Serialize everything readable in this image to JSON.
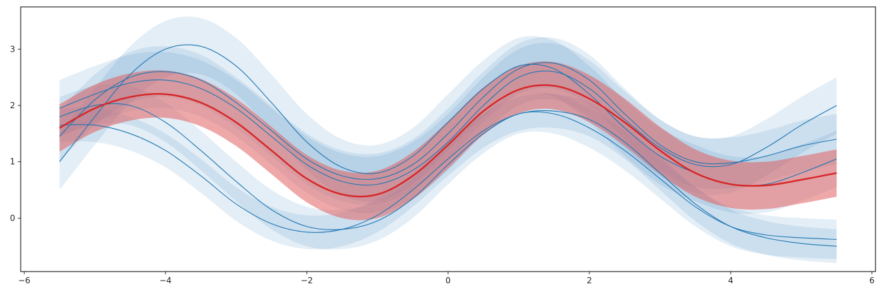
{
  "chart_data": {
    "type": "line",
    "title": "",
    "xlabel": "",
    "ylabel": "",
    "xlim": [
      -6.05,
      6.05
    ],
    "ylim": [
      -0.95,
      3.75
    ],
    "grid": false,
    "legend": "none",
    "xticks": [
      {
        "value": -6,
        "label": "−6"
      },
      {
        "value": -4,
        "label": "−4"
      },
      {
        "value": -2,
        "label": "−2"
      },
      {
        "value": 0,
        "label": "0"
      },
      {
        "value": 2,
        "label": "2"
      },
      {
        "value": 4,
        "label": "4"
      },
      {
        "value": 6,
        "label": "6"
      }
    ],
    "yticks": [
      {
        "value": 0,
        "label": "0"
      },
      {
        "value": 1,
        "label": "1"
      },
      {
        "value": 2,
        "label": "2"
      },
      {
        "value": 3,
        "label": "3"
      }
    ],
    "colors": {
      "sample": "#1f77b4",
      "sample_band": "#1f77b4",
      "mean": "#d62728",
      "mean_band": "#e06060"
    },
    "x": [
      -5.5,
      -5.0,
      -4.5,
      -4.0,
      -3.5,
      -3.0,
      -2.5,
      -2.0,
      -1.5,
      -1.0,
      -0.5,
      0.0,
      0.5,
      1.0,
      1.5,
      2.0,
      2.5,
      3.0,
      3.5,
      4.0,
      4.5,
      5.0,
      5.5
    ],
    "series": [
      {
        "role": "sample",
        "values": [
          1.0,
          1.8,
          2.55,
          3.0,
          3.05,
          2.7,
          2.05,
          1.35,
          0.9,
          0.8,
          1.1,
          1.7,
          2.3,
          2.7,
          2.65,
          2.2,
          1.6,
          1.1,
          0.8,
          0.6,
          0.6,
          0.8,
          1.05
        ],
        "band": 0.5
      },
      {
        "role": "sample",
        "values": [
          1.45,
          2.1,
          2.5,
          2.6,
          2.45,
          2.05,
          1.55,
          1.05,
          0.75,
          0.7,
          0.95,
          1.5,
          2.15,
          2.65,
          2.75,
          2.45,
          1.85,
          1.3,
          1.0,
          0.98,
          1.1,
          1.28,
          1.4
        ],
        "band": 0.45
      },
      {
        "role": "sample",
        "values": [
          1.95,
          2.2,
          2.4,
          2.45,
          2.3,
          1.95,
          1.45,
          0.95,
          0.65,
          0.6,
          0.85,
          1.35,
          2.0,
          2.5,
          2.6,
          2.3,
          1.75,
          1.25,
          0.95,
          0.95,
          1.25,
          1.65,
          2.0
        ],
        "band": 0.5
      },
      {
        "role": "sample",
        "values": [
          1.8,
          2.0,
          2.0,
          1.7,
          1.2,
          0.65,
          0.15,
          -0.15,
          -0.2,
          -0.05,
          0.35,
          0.95,
          1.5,
          1.85,
          1.85,
          1.6,
          1.2,
          0.7,
          0.2,
          -0.15,
          -0.3,
          -0.35,
          -0.38
        ],
        "band": 0.35
      },
      {
        "role": "sample",
        "values": [
          1.65,
          1.65,
          1.5,
          1.2,
          0.75,
          0.25,
          -0.1,
          -0.25,
          -0.2,
          0.05,
          0.5,
          1.05,
          1.55,
          1.85,
          1.9,
          1.75,
          1.35,
          0.8,
          0.25,
          -0.15,
          -0.35,
          -0.45,
          -0.5
        ],
        "band": 0.3
      },
      {
        "role": "mean",
        "values": [
          1.6,
          1.95,
          2.15,
          2.2,
          2.05,
          1.7,
          1.2,
          0.7,
          0.42,
          0.42,
          0.75,
          1.3,
          1.9,
          2.28,
          2.35,
          2.12,
          1.7,
          1.2,
          0.8,
          0.6,
          0.58,
          0.68,
          0.8
        ],
        "band": 0.42
      }
    ]
  }
}
